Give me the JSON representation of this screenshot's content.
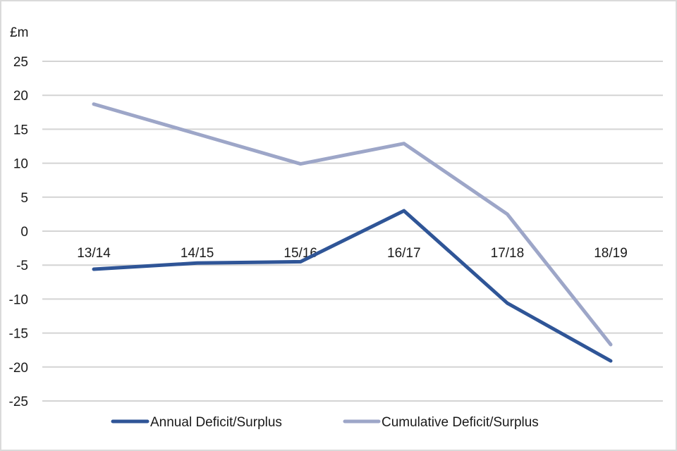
{
  "chart_data": {
    "type": "line",
    "title": "",
    "ylabel": "£m",
    "xlabel": "",
    "categories": [
      "13/14",
      "14/15",
      "15/16",
      "16/17",
      "17/18",
      "18/19"
    ],
    "ylim": [
      -25,
      25
    ],
    "yticks": [
      25,
      20,
      15,
      10,
      5,
      0,
      -5,
      -10,
      -15,
      -20,
      -25
    ],
    "grid": true,
    "legend_position": "bottom",
    "series": [
      {
        "name": "Annual Deficit/Surplus",
        "color": "#2f5597",
        "values": [
          -5.6,
          -4.7,
          -4.5,
          3.0,
          -10.6,
          -19.1
        ]
      },
      {
        "name": "Cumulative Deficit/Surplus",
        "color": "#9da6c8",
        "values": [
          18.7,
          14.3,
          9.9,
          12.9,
          2.5,
          -16.7
        ]
      }
    ]
  }
}
